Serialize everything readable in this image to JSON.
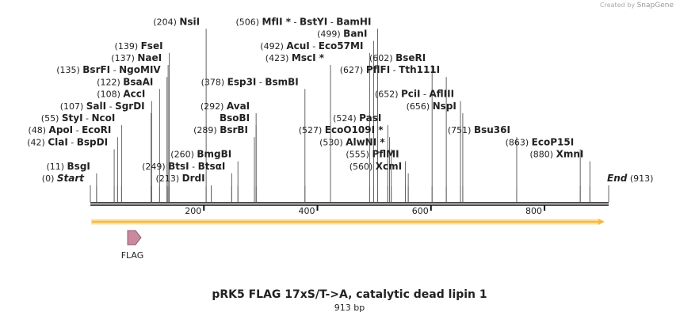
{
  "title": "pRK5 FLAG 17xS/T->A, catalytic dead lipin 1",
  "length_label": "913 bp",
  "credit": {
    "prefix": "Created by",
    "brand": "SnapGene"
  },
  "sequence_length": 913,
  "ruler_ticks": [
    200,
    400,
    600,
    800
  ],
  "feature": {
    "name": "FLAG",
    "color": "#c9899f"
  },
  "orf_color": "#f5b942",
  "sites": [
    {
      "pos": "(0)",
      "names": [
        "Start"
      ],
      "italic": true,
      "bp": 0,
      "row": 0
    },
    {
      "pos": "(11)",
      "names": [
        "BsgI"
      ],
      "bp": 11,
      "row": 1
    },
    {
      "pos": "(42)",
      "names": [
        "ClaI",
        "BspDI"
      ],
      "bp": 42,
      "row": 3
    },
    {
      "pos": "(48)",
      "names": [
        "ApoI",
        "EcoRI"
      ],
      "bp": 48,
      "row": 4
    },
    {
      "pos": "(55)",
      "names": [
        "StyI",
        "NcoI"
      ],
      "bp": 55,
      "row": 5
    },
    {
      "pos": "(107)",
      "names": [
        "SalI",
        "SgrDI"
      ],
      "bp": 107,
      "row": 6
    },
    {
      "pos": "(108)",
      "names": [
        "AccI"
      ],
      "bp": 108,
      "row": 7
    },
    {
      "pos": "(122)",
      "names": [
        "BsaAI"
      ],
      "bp": 122,
      "row": 8
    },
    {
      "pos": "(135)",
      "names": [
        "BsrFI",
        "NgoMIV"
      ],
      "bp": 135,
      "row": 9
    },
    {
      "pos": "(137)",
      "names": [
        "NaeI"
      ],
      "bp": 137,
      "row": 10
    },
    {
      "pos": "(139)",
      "names": [
        "FseI"
      ],
      "bp": 139,
      "row": 11
    },
    {
      "pos": "(204)",
      "names": [
        "NsiI"
      ],
      "bp": 204,
      "row": 13
    },
    {
      "pos": "(213)",
      "names": [
        "DrdI"
      ],
      "bp": 213,
      "row": 0
    },
    {
      "pos": "(249)",
      "names": [
        "BtsI",
        "BtsαI"
      ],
      "bp": 249,
      "row": 1
    },
    {
      "pos": "(260)",
      "names": [
        "BmgBI"
      ],
      "bp": 260,
      "row": 2
    },
    {
      "pos": "(289)",
      "names": [
        "BsrBI"
      ],
      "bp": 289,
      "row": 4
    },
    {
      "pos": "",
      "names": [
        "BsoBI"
      ],
      "bp": 292,
      "row": 5
    },
    {
      "pos": "(292)",
      "names": [
        "AvaI"
      ],
      "bp": 292,
      "row": 6
    },
    {
      "pos": "(378)",
      "names": [
        "Esp3I",
        "BsmBI"
      ],
      "bp": 378,
      "row": 8
    },
    {
      "pos": "(423)",
      "names": [
        "MscI *"
      ],
      "bp": 423,
      "row": 10
    },
    {
      "pos": "(492)",
      "names": [
        "AcuI",
        "Eco57MI"
      ],
      "bp": 492,
      "row": 11
    },
    {
      "pos": "(499)",
      "names": [
        "BanI"
      ],
      "bp": 499,
      "row": 12
    },
    {
      "pos": "(506)",
      "names": [
        "MfII *",
        "BstYI",
        "BamHI"
      ],
      "bp": 506,
      "row": 13
    },
    {
      "pos": "(524)",
      "names": [
        "PasI"
      ],
      "bp": 524,
      "row": 5
    },
    {
      "pos": "(527)",
      "names": [
        "EcoO109I *"
      ],
      "bp": 527,
      "row": 4
    },
    {
      "pos": "(530)",
      "names": [
        "AlwNI *"
      ],
      "bp": 530,
      "row": 3
    },
    {
      "pos": "(555)",
      "names": [
        "PflMI"
      ],
      "bp": 555,
      "row": 2
    },
    {
      "pos": "(560)",
      "names": [
        "XcmI"
      ],
      "bp": 560,
      "row": 1
    },
    {
      "pos": "(602)",
      "names": [
        "BseRI"
      ],
      "bp": 602,
      "row": 10
    },
    {
      "pos": "(627)",
      "names": [
        "PflFI",
        "Tth111I"
      ],
      "bp": 627,
      "row": 9
    },
    {
      "pos": "(652)",
      "names": [
        "PciI",
        "AflIII"
      ],
      "bp": 652,
      "row": 7
    },
    {
      "pos": "(656)",
      "names": [
        "NspI"
      ],
      "bp": 656,
      "row": 6
    },
    {
      "pos": "(751)",
      "names": [
        "Bsu36I"
      ],
      "bp": 751,
      "row": 4
    },
    {
      "pos": "(863)",
      "names": [
        "EcoP15I"
      ],
      "bp": 863,
      "row": 3
    },
    {
      "pos": "(880)",
      "names": [
        "XmnI"
      ],
      "bp": 880,
      "row": 2
    },
    {
      "pos": "(913)",
      "names": [
        "End"
      ],
      "italic": true,
      "bp": 913,
      "row": 0
    }
  ]
}
